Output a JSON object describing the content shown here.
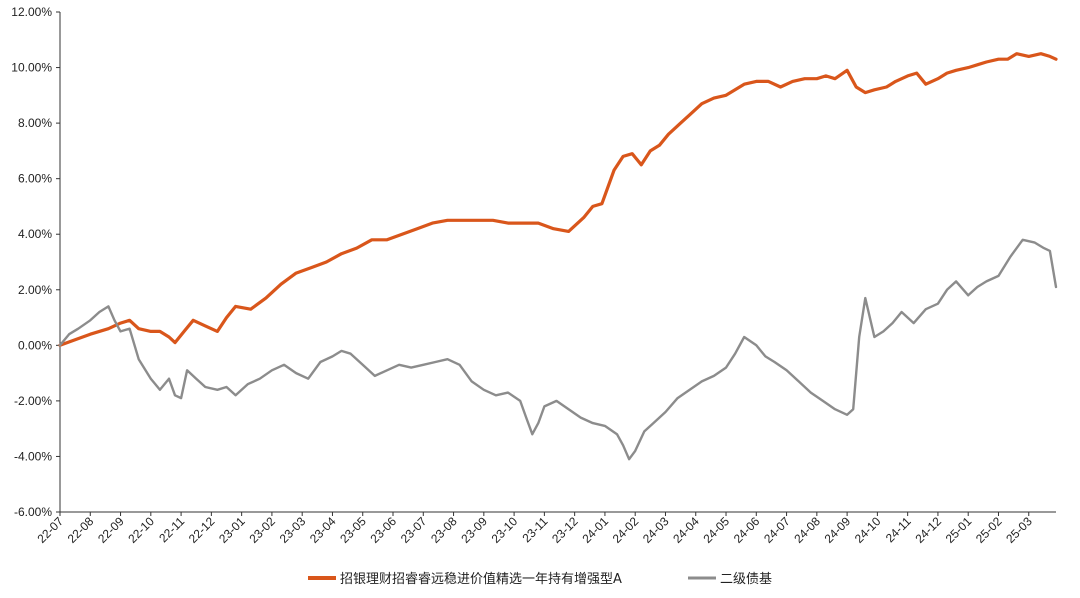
{
  "chart_data": {
    "type": "line",
    "title": "",
    "xlabel": "",
    "ylabel": "",
    "ylim": [
      -6,
      12
    ],
    "yticks": [
      -6,
      -4,
      -2,
      0,
      2,
      4,
      6,
      8,
      10,
      12
    ],
    "ytick_labels": [
      "-6.00%",
      "-4.00%",
      "-2.00%",
      "0.00%",
      "2.00%",
      "4.00%",
      "6.00%",
      "8.00%",
      "10.00%",
      "12.00%"
    ],
    "x_unit": "month index from 22-07",
    "xlim": [
      0,
      32.9
    ],
    "xtick_labels": [
      "22-07",
      "22-08",
      "22-09",
      "22-10",
      "22-11",
      "22-12",
      "23-01",
      "23-02",
      "23-03",
      "23-04",
      "23-05",
      "23-06",
      "23-07",
      "23-08",
      "23-09",
      "23-10",
      "23-11",
      "23-12",
      "24-01",
      "24-02",
      "24-03",
      "24-04",
      "24-05",
      "24-06",
      "24-07",
      "24-08",
      "24-09",
      "24-10",
      "24-11",
      "24-12",
      "25-01",
      "25-02",
      "25-03"
    ],
    "grid": false,
    "legend_position": "bottom",
    "series": [
      {
        "name": "招银理财招睿睿远稳进价值精选一年持有增强型A",
        "color": "#d9561b",
        "x": [
          0,
          0.5,
          1,
          1.6,
          2,
          2.3,
          2.6,
          3,
          3.3,
          3.6,
          3.8,
          4.1,
          4.4,
          4.8,
          5.2,
          5.5,
          5.8,
          6.3,
          6.8,
          7.3,
          7.8,
          8.3,
          8.8,
          9.3,
          9.8,
          10.3,
          10.8,
          11.3,
          11.8,
          12.3,
          12.8,
          13.3,
          13.8,
          14.3,
          14.8,
          15.3,
          15.8,
          16.3,
          16.8,
          17.3,
          17.6,
          17.9,
          18.3,
          18.6,
          18.9,
          19.2,
          19.5,
          19.8,
          20.1,
          20.5,
          20.8,
          21.2,
          21.6,
          22,
          22.3,
          22.6,
          23,
          23.4,
          23.8,
          24.2,
          24.6,
          25,
          25.3,
          25.6,
          26,
          26.3,
          26.6,
          26.9,
          27.3,
          27.6,
          28,
          28.3,
          28.6,
          29,
          29.3,
          29.6,
          30,
          30.3,
          30.6,
          31,
          31.3,
          31.6,
          32,
          32.4,
          32.7,
          32.9
        ],
        "y": [
          0,
          0.2,
          0.4,
          0.6,
          0.8,
          0.9,
          0.6,
          0.5,
          0.5,
          0.3,
          0.1,
          0.5,
          0.9,
          0.7,
          0.5,
          1.0,
          1.4,
          1.3,
          1.7,
          2.2,
          2.6,
          2.8,
          3.0,
          3.3,
          3.5,
          3.8,
          3.8,
          4.0,
          4.2,
          4.4,
          4.5,
          4.5,
          4.5,
          4.5,
          4.4,
          4.4,
          4.4,
          4.2,
          4.1,
          4.6,
          5.0,
          5.1,
          6.3,
          6.8,
          6.9,
          6.5,
          7.0,
          7.2,
          7.6,
          8.0,
          8.3,
          8.7,
          8.9,
          9.0,
          9.2,
          9.4,
          9.5,
          9.5,
          9.3,
          9.5,
          9.6,
          9.6,
          9.7,
          9.6,
          9.9,
          9.3,
          9.1,
          9.2,
          9.3,
          9.5,
          9.7,
          9.8,
          9.4,
          9.6,
          9.8,
          9.9,
          10.0,
          10.1,
          10.2,
          10.3,
          10.3,
          10.5,
          10.4,
          10.5,
          10.4,
          10.3
        ]
      },
      {
        "name": "二级债基",
        "color": "#8c8c8c",
        "x": [
          0,
          0.3,
          0.6,
          1,
          1.3,
          1.6,
          1.8,
          2,
          2.3,
          2.6,
          3,
          3.3,
          3.6,
          3.8,
          4,
          4.2,
          4.5,
          4.8,
          5.2,
          5.5,
          5.8,
          6.2,
          6.6,
          7,
          7.4,
          7.8,
          8.2,
          8.6,
          9,
          9.3,
          9.6,
          10,
          10.4,
          10.8,
          11.2,
          11.6,
          12,
          12.4,
          12.8,
          13.2,
          13.6,
          14,
          14.4,
          14.8,
          15.2,
          15.4,
          15.6,
          15.8,
          16,
          16.4,
          16.8,
          17.2,
          17.6,
          18,
          18.4,
          18.6,
          18.8,
          19,
          19.3,
          19.6,
          20,
          20.4,
          20.8,
          21.2,
          21.6,
          22,
          22.3,
          22.6,
          23,
          23.3,
          23.6,
          24,
          24.4,
          24.8,
          25.2,
          25.6,
          26,
          26.2,
          26.4,
          26.6,
          26.9,
          27.2,
          27.5,
          27.8,
          28.2,
          28.6,
          29,
          29.3,
          29.6,
          30,
          30.3,
          30.6,
          31,
          31.4,
          31.8,
          32.2,
          32.5,
          32.7,
          32.9
        ],
        "y": [
          0,
          0.4,
          0.6,
          0.9,
          1.2,
          1.4,
          0.9,
          0.5,
          0.6,
          -0.5,
          -1.2,
          -1.6,
          -1.2,
          -1.8,
          -1.9,
          -0.9,
          -1.2,
          -1.5,
          -1.6,
          -1.5,
          -1.8,
          -1.4,
          -1.2,
          -0.9,
          -0.7,
          -1.0,
          -1.2,
          -0.6,
          -0.4,
          -0.2,
          -0.3,
          -0.7,
          -1.1,
          -0.9,
          -0.7,
          -0.8,
          -0.7,
          -0.6,
          -0.5,
          -0.7,
          -1.3,
          -1.6,
          -1.8,
          -1.7,
          -2.0,
          -2.6,
          -3.2,
          -2.8,
          -2.2,
          -2.0,
          -2.3,
          -2.6,
          -2.8,
          -2.9,
          -3.2,
          -3.6,
          -4.1,
          -3.8,
          -3.1,
          -2.8,
          -2.4,
          -1.9,
          -1.6,
          -1.3,
          -1.1,
          -0.8,
          -0.3,
          0.3,
          0.0,
          -0.4,
          -0.6,
          -0.9,
          -1.3,
          -1.7,
          -2.0,
          -2.3,
          -2.5,
          -2.3,
          0.3,
          1.7,
          0.3,
          0.5,
          0.8,
          1.2,
          0.8,
          1.3,
          1.5,
          2.0,
          2.3,
          1.8,
          2.1,
          2.3,
          2.5,
          3.2,
          3.8,
          3.7,
          3.5,
          3.4,
          2.1
        ]
      }
    ]
  }
}
